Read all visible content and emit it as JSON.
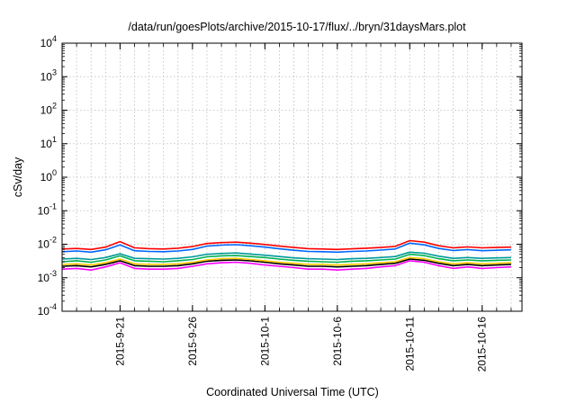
{
  "chart_data": {
    "type": "line",
    "title": "/data/run/goesPlots/archive/2015-10-17/flux/../bryn/31daysMars.plot",
    "xlabel": "Coordinated Universal Time (UTC)",
    "ylabel": "cSv/day",
    "yscale": "log",
    "ylim": [
      0.0001,
      10000
    ],
    "xlim": [
      "2015-09-17",
      "2015-10-18T18:00"
    ],
    "y_ticks": [
      {
        "base": "10",
        "exp": "-4"
      },
      {
        "base": "10",
        "exp": "-3"
      },
      {
        "base": "10",
        "exp": "-2"
      },
      {
        "base": "10",
        "exp": "-1"
      },
      {
        "base": "10",
        "exp": "0"
      },
      {
        "base": "10",
        "exp": "1"
      },
      {
        "base": "10",
        "exp": "2"
      },
      {
        "base": "10",
        "exp": "3"
      },
      {
        "base": "10",
        "exp": "4"
      }
    ],
    "x_ticks": [
      {
        "date": "2015-09-21",
        "label": "2015-9-21"
      },
      {
        "date": "2015-09-26",
        "label": "2015-9-26"
      },
      {
        "date": "2015-10-01",
        "label": "2015-10-1"
      },
      {
        "date": "2015-10-06",
        "label": "2015-10-6"
      },
      {
        "date": "2015-10-11",
        "label": "2015-10-11"
      },
      {
        "date": "2015-10-16",
        "label": "2015-10-16"
      }
    ],
    "grid": true,
    "legend": "none",
    "x": [
      "2015-09-17",
      "2015-09-18",
      "2015-09-19",
      "2015-09-20",
      "2015-09-21",
      "2015-09-22",
      "2015-09-23",
      "2015-09-24",
      "2015-09-25",
      "2015-09-26",
      "2015-09-27",
      "2015-09-28",
      "2015-09-29",
      "2015-09-30",
      "2015-10-01",
      "2015-10-02",
      "2015-10-03",
      "2015-10-04",
      "2015-10-05",
      "2015-10-06",
      "2015-10-07",
      "2015-10-08",
      "2015-10-09",
      "2015-10-10",
      "2015-10-11",
      "2015-10-12",
      "2015-10-13",
      "2015-10-14",
      "2015-10-15",
      "2015-10-16",
      "2015-10-17",
      "2015-10-18"
    ],
    "series": [
      {
        "color": "#ff0000",
        "values": [
          0.0072,
          0.0075,
          0.007,
          0.0082,
          0.012,
          0.0078,
          0.0074,
          0.0072,
          0.0076,
          0.0085,
          0.0105,
          0.0112,
          0.0115,
          0.0108,
          0.0098,
          0.0088,
          0.008,
          0.0074,
          0.0072,
          0.007,
          0.0073,
          0.0076,
          0.008,
          0.0086,
          0.0128,
          0.0115,
          0.009,
          0.0078,
          0.0083,
          0.0078,
          0.008,
          0.0082
        ]
      },
      {
        "color": "#0066ff",
        "values": [
          0.006,
          0.0063,
          0.0058,
          0.0068,
          0.0095,
          0.0064,
          0.0061,
          0.006,
          0.0063,
          0.007,
          0.0088,
          0.0094,
          0.0097,
          0.009,
          0.0082,
          0.0073,
          0.0066,
          0.0061,
          0.006,
          0.0058,
          0.0061,
          0.0063,
          0.0067,
          0.0072,
          0.0108,
          0.0096,
          0.0075,
          0.0065,
          0.0069,
          0.0064,
          0.0066,
          0.0068
        ]
      },
      {
        "color": "#00b050",
        "values": [
          0.003,
          0.0032,
          0.0029,
          0.0034,
          0.0045,
          0.0032,
          0.0031,
          0.003,
          0.0032,
          0.0035,
          0.0042,
          0.0045,
          0.0046,
          0.0043,
          0.004,
          0.0036,
          0.0033,
          0.0031,
          0.003,
          0.0029,
          0.0031,
          0.0032,
          0.0034,
          0.0036,
          0.005,
          0.0046,
          0.0037,
          0.0032,
          0.0034,
          0.0032,
          0.0033,
          0.0034
        ]
      },
      {
        "color": "#009999",
        "values": [
          0.0036,
          0.0038,
          0.0035,
          0.004,
          0.0052,
          0.0038,
          0.0037,
          0.0036,
          0.0038,
          0.0042,
          0.005,
          0.0053,
          0.0055,
          0.0051,
          0.0047,
          0.0043,
          0.0039,
          0.0037,
          0.0036,
          0.0035,
          0.0037,
          0.0038,
          0.004,
          0.0043,
          0.0058,
          0.0054,
          0.0044,
          0.0038,
          0.004,
          0.0038,
          0.0039,
          0.004
        ]
      },
      {
        "color": "#000000",
        "values": [
          0.0022,
          0.0023,
          0.0021,
          0.0025,
          0.0032,
          0.0023,
          0.0022,
          0.0022,
          0.0023,
          0.0026,
          0.0031,
          0.0033,
          0.0034,
          0.0032,
          0.0029,
          0.0026,
          0.0024,
          0.0022,
          0.0022,
          0.0021,
          0.0022,
          0.0023,
          0.0025,
          0.0027,
          0.0036,
          0.0033,
          0.0027,
          0.0023,
          0.0025,
          0.0023,
          0.0024,
          0.0025
        ]
      },
      {
        "color": "#ffcc00",
        "values": [
          0.0025,
          0.0026,
          0.0024,
          0.0028,
          0.0036,
          0.0026,
          0.0025,
          0.0025,
          0.0026,
          0.0029,
          0.0034,
          0.0037,
          0.0038,
          0.0035,
          0.0032,
          0.0029,
          0.0027,
          0.0025,
          0.0025,
          0.0024,
          0.0025,
          0.0026,
          0.0028,
          0.003,
          0.004,
          0.0037,
          0.003,
          0.0026,
          0.0028,
          0.0026,
          0.0027,
          0.0028
        ]
      },
      {
        "color": "#ff00ff",
        "values": [
          0.0018,
          0.0019,
          0.0017,
          0.0021,
          0.0028,
          0.0019,
          0.0018,
          0.0018,
          0.0019,
          0.0022,
          0.0026,
          0.0028,
          0.0029,
          0.0027,
          0.0024,
          0.0022,
          0.002,
          0.0018,
          0.0018,
          0.0017,
          0.0018,
          0.0019,
          0.0021,
          0.0023,
          0.0032,
          0.0029,
          0.0023,
          0.0019,
          0.0021,
          0.0019,
          0.002,
          0.0021
        ]
      }
    ]
  }
}
